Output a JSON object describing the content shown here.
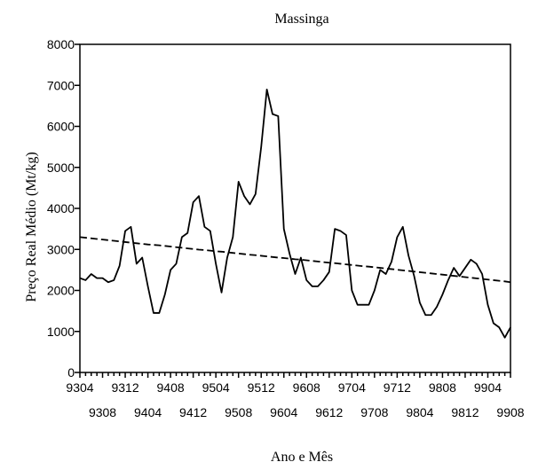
{
  "chart_data": {
    "type": "line",
    "title": "Massinga",
    "xlabel": "Ano e Mês",
    "ylabel": "Preço Real Médio (Mt/kg)",
    "ylim": [
      0,
      8000
    ],
    "yticks": [
      0,
      1000,
      2000,
      3000,
      4000,
      5000,
      6000,
      7000,
      8000
    ],
    "xtick_labels_row1": [
      "9304",
      "9312",
      "9408",
      "9504",
      "9512",
      "9608",
      "9704",
      "9712",
      "9808",
      "9904"
    ],
    "xtick_labels_row2": [
      "9308",
      "9404",
      "9412",
      "9508",
      "9604",
      "9612",
      "9708",
      "9804",
      "9812",
      "9908"
    ],
    "x": [
      "9304",
      "9305",
      "9306",
      "9307",
      "9308",
      "9309",
      "9310",
      "9311",
      "9312",
      "9401",
      "9402",
      "9403",
      "9404",
      "9405",
      "9406",
      "9407",
      "9408",
      "9409",
      "9410",
      "9411",
      "9412",
      "9501",
      "9502",
      "9503",
      "9504",
      "9505",
      "9506",
      "9507",
      "9508",
      "9509",
      "9510",
      "9511",
      "9512",
      "9601",
      "9602",
      "9603",
      "9604",
      "9605",
      "9606",
      "9607",
      "9608",
      "9609",
      "9610",
      "9611",
      "9612",
      "9701",
      "9702",
      "9703",
      "9704",
      "9705",
      "9706",
      "9707",
      "9708",
      "9709",
      "9710",
      "9711",
      "9712",
      "9801",
      "9802",
      "9803",
      "9804",
      "9805",
      "9806",
      "9807",
      "9808",
      "9809",
      "9810",
      "9811",
      "9812",
      "9901",
      "9902",
      "9903",
      "9904",
      "9905",
      "9906",
      "9907",
      "9908"
    ],
    "grid": false,
    "series": [
      {
        "style": "solid",
        "values": [
          2300,
          2250,
          2400,
          2300,
          2300,
          2200,
          2250,
          2600,
          3450,
          3550,
          2650,
          2800,
          2100,
          1450,
          1450,
          1900,
          2500,
          2650,
          3300,
          3400,
          4150,
          4300,
          3550,
          3450,
          2650,
          1950,
          2800,
          3300,
          4650,
          4300,
          4100,
          4350,
          5500,
          6900,
          6300,
          6250,
          3500,
          2900,
          2400,
          2800,
          2250,
          2100,
          2100,
          2250,
          2450,
          3500,
          3450,
          3350,
          2000,
          1650,
          1650,
          1650,
          2000,
          2500,
          2400,
          2700,
          3300,
          3550,
          2850,
          2350,
          1700,
          1400,
          1400,
          1600,
          1900,
          2250,
          2550,
          2350,
          2550,
          2750,
          2650,
          2400,
          1650,
          1200,
          1100,
          850,
          1100
        ]
      },
      {
        "style": "dashed",
        "values": [
          3300,
          3285,
          3270,
          3255,
          3240,
          3225,
          3210,
          3195,
          3180,
          3165,
          3150,
          3135,
          3120,
          3110,
          3100,
          3085,
          3070,
          3055,
          3040,
          3025,
          3010,
          2995,
          2985,
          2970,
          2955,
          2945,
          2930,
          2915,
          2900,
          2885,
          2870,
          2860,
          2845,
          2830,
          2815,
          2800,
          2790,
          2775,
          2760,
          2750,
          2735,
          2720,
          2705,
          2690,
          2675,
          2665,
          2650,
          2635,
          2620,
          2605,
          2590,
          2580,
          2565,
          2550,
          2535,
          2520,
          2505,
          2490,
          2475,
          2460,
          2445,
          2430,
          2415,
          2400,
          2385,
          2370,
          2355,
          2340,
          2325,
          2310,
          2295,
          2280,
          2265,
          2250,
          2235,
          2220,
          2200
        ]
      }
    ]
  }
}
